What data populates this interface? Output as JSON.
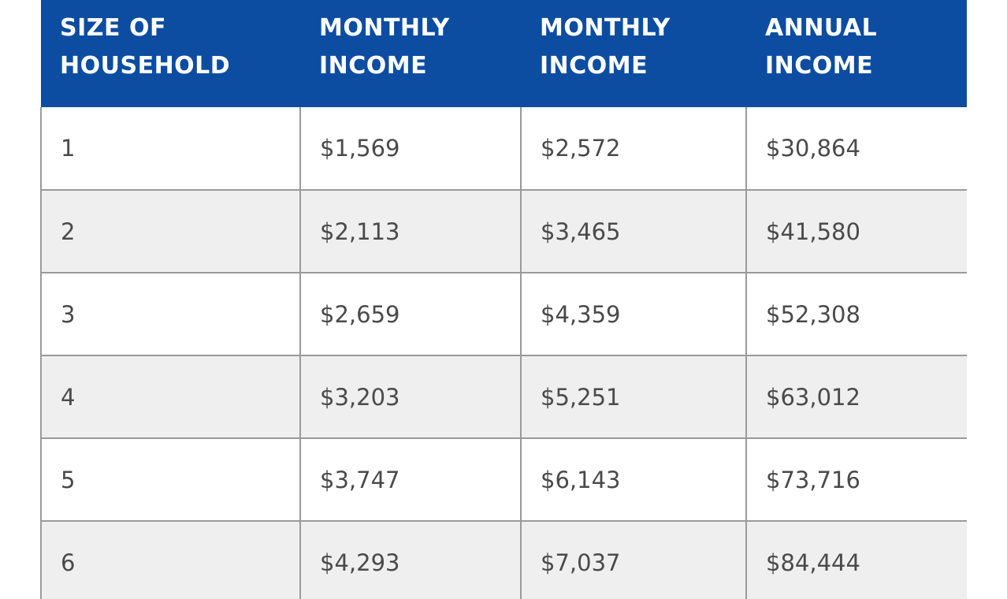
{
  "table": {
    "headers": [
      [
        "SIZE OF",
        "HOUSEHOLD"
      ],
      [
        "MONTHLY",
        "INCOME"
      ],
      [
        "MONTHLY",
        "INCOME"
      ],
      [
        "ANNUAL",
        "INCOME"
      ]
    ],
    "rows": [
      [
        "1",
        "$1,569",
        "$2,572",
        "$30,864"
      ],
      [
        "2",
        "$2,113",
        "$3,465",
        "$41,580"
      ],
      [
        "3",
        "$2,659",
        "$4,359",
        "$52,308"
      ],
      [
        "4",
        "$3,203",
        "$5,251",
        "$63,012"
      ],
      [
        "5",
        "$3,747",
        "$6,143",
        "$73,716"
      ],
      [
        "6",
        "$4,293",
        "$7,037",
        "$84,444"
      ]
    ],
    "colors": {
      "header_bg": "#0c4da2",
      "row_alt_bg": "#efefef",
      "border": "#9a9a9a"
    }
  }
}
